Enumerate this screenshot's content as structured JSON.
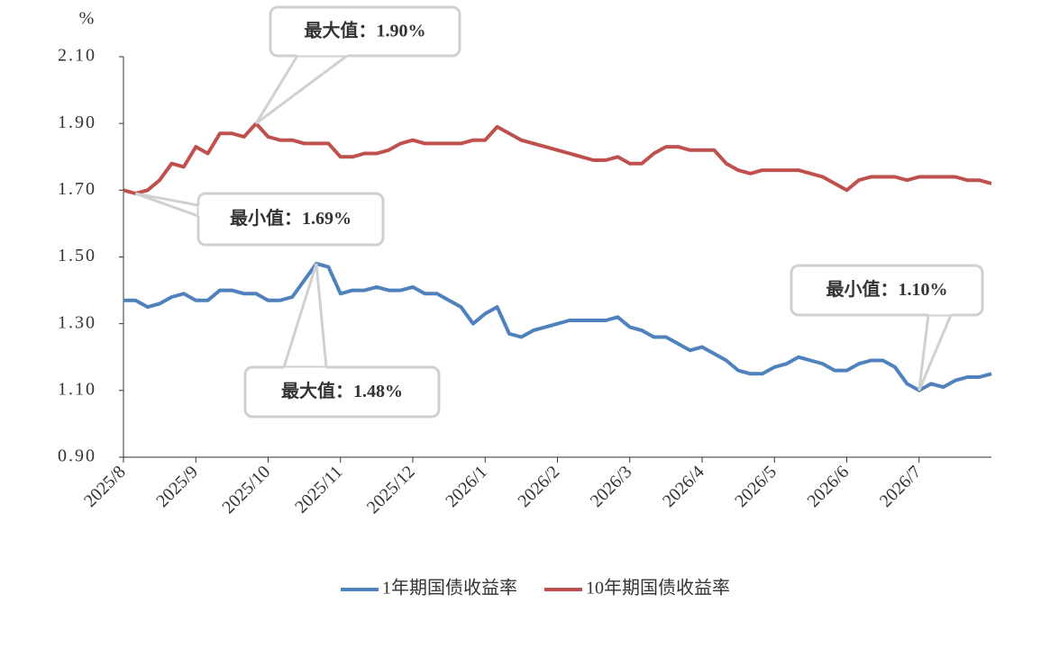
{
  "chart_data": {
    "type": "line",
    "y_unit": "%",
    "categories": [
      "2025/8",
      null,
      null,
      null,
      null,
      null,
      "2025/9",
      null,
      null,
      null,
      null,
      null,
      "2025/10",
      null,
      null,
      null,
      null,
      null,
      "2025/11",
      null,
      null,
      null,
      null,
      null,
      "2025/12",
      null,
      null,
      null,
      null,
      null,
      "2026/1",
      null,
      null,
      null,
      null,
      null,
      "2026/2",
      null,
      null,
      null,
      null,
      null,
      "2026/3",
      null,
      null,
      null,
      null,
      null,
      "2026/4",
      null,
      null,
      null,
      null,
      null,
      "2026/5",
      null,
      null,
      null,
      null,
      null,
      "2026/6",
      null,
      null,
      null,
      null,
      null,
      "2026/7",
      null,
      null,
      null,
      null,
      null,
      null
    ],
    "series": [
      {
        "name": "1年期国债收益率",
        "color": "#4f81bd",
        "values": [
          1.37,
          1.37,
          1.35,
          1.36,
          1.38,
          1.39,
          1.37,
          1.37,
          1.4,
          1.4,
          1.39,
          1.39,
          1.37,
          1.37,
          1.38,
          1.43,
          1.48,
          1.47,
          1.39,
          1.4,
          1.4,
          1.41,
          1.4,
          1.4,
          1.41,
          1.39,
          1.39,
          1.37,
          1.35,
          1.3,
          1.33,
          1.35,
          1.27,
          1.26,
          1.28,
          1.29,
          1.3,
          1.31,
          1.31,
          1.31,
          1.31,
          1.32,
          1.29,
          1.28,
          1.26,
          1.26,
          1.24,
          1.22,
          1.23,
          1.21,
          1.19,
          1.16,
          1.15,
          1.15,
          1.17,
          1.18,
          1.2,
          1.19,
          1.18,
          1.16,
          1.16,
          1.18,
          1.19,
          1.19,
          1.17,
          1.12,
          1.1,
          1.12,
          1.11,
          1.13,
          1.14,
          1.14,
          1.15
        ]
      },
      {
        "name": "10年期国债收益率",
        "color": "#c0504d",
        "values": [
          1.7,
          1.69,
          1.7,
          1.73,
          1.78,
          1.77,
          1.83,
          1.81,
          1.87,
          1.87,
          1.86,
          1.9,
          1.86,
          1.85,
          1.85,
          1.84,
          1.84,
          1.84,
          1.8,
          1.8,
          1.81,
          1.81,
          1.82,
          1.84,
          1.85,
          1.84,
          1.84,
          1.84,
          1.84,
          1.85,
          1.85,
          1.89,
          1.87,
          1.85,
          1.84,
          1.83,
          1.82,
          1.81,
          1.8,
          1.79,
          1.79,
          1.8,
          1.78,
          1.78,
          1.81,
          1.83,
          1.83,
          1.82,
          1.82,
          1.82,
          1.78,
          1.76,
          1.75,
          1.76,
          1.76,
          1.76,
          1.76,
          1.75,
          1.74,
          1.72,
          1.7,
          1.73,
          1.74,
          1.74,
          1.74,
          1.73,
          1.74,
          1.74,
          1.74,
          1.74,
          1.73,
          1.73,
          1.72
        ]
      }
    ],
    "ylim": [
      0.9,
      2.1
    ],
    "yticks": [
      {
        "value": 0.9,
        "label": "0.90"
      },
      {
        "value": 1.1,
        "label": "1.10"
      },
      {
        "value": 1.3,
        "label": "1.30"
      },
      {
        "value": 1.5,
        "label": "1.50"
      },
      {
        "value": 1.7,
        "label": "1.70"
      },
      {
        "value": 1.9,
        "label": "1.90"
      },
      {
        "value": 2.1,
        "label": "2.10"
      }
    ],
    "annotations": [
      "最大值：1.90%",
      "最小值：1.69%",
      "最小值：1.10%",
      "最大值：1.48%"
    ],
    "legend": "bottom"
  }
}
